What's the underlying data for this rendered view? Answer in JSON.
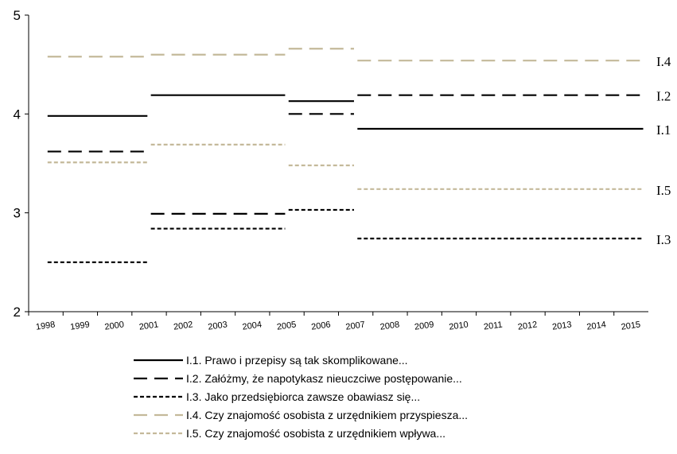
{
  "chart_data": {
    "type": "line",
    "title": "",
    "xlabel": "",
    "ylabel": "",
    "ylim": [
      2,
      5
    ],
    "yticks": [
      "2",
      "3",
      "4",
      "5"
    ],
    "xlim": [
      1998,
      2016
    ],
    "xticks": [
      "1998",
      "1999",
      "2000",
      "2001",
      "2002",
      "2003",
      "2004",
      "2005",
      "2006",
      "2007",
      "2008",
      "2009",
      "2010",
      "2011",
      "2012",
      "2013",
      "2014",
      "2015"
    ],
    "grid": false,
    "legend_position": "bottom",
    "series": [
      {
        "name": "I.1. Prawo i przepisy są tak skomplikowane...",
        "end_label": "I.1",
        "color": "#000000",
        "style": "solid",
        "segments": [
          {
            "x_start": 1998.5,
            "x_end": 2001.5,
            "y": 3.98
          },
          {
            "x_start": 2001.5,
            "x_end": 2005.5,
            "y": 4.19
          },
          {
            "x_start": 2005.5,
            "x_end": 2007.5,
            "y": 4.13
          },
          {
            "x_start": 2007.5,
            "x_end": 2015.9,
            "y": 3.85
          }
        ]
      },
      {
        "name": "I.2. Załóżmy, że napotykasz nieuczciwe postępowanie...",
        "end_label": "I.2",
        "color": "#000000",
        "style": "longdash",
        "segments": [
          {
            "x_start": 1998.5,
            "x_end": 2001.5,
            "y": 3.62
          },
          {
            "x_start": 2001.5,
            "x_end": 2005.5,
            "y": 2.99
          },
          {
            "x_start": 2005.5,
            "x_end": 2007.5,
            "y": 4.0
          },
          {
            "x_start": 2007.5,
            "x_end": 2015.9,
            "y": 4.19
          }
        ]
      },
      {
        "name": "I.3. Jako przedsiębiorca zawsze obawiasz się...",
        "end_label": "I.3",
        "color": "#000000",
        "style": "shortdash",
        "segments": [
          {
            "x_start": 1998.5,
            "x_end": 2001.5,
            "y": 2.5
          },
          {
            "x_start": 2001.5,
            "x_end": 2005.5,
            "y": 2.84
          },
          {
            "x_start": 2005.5,
            "x_end": 2007.5,
            "y": 3.03
          },
          {
            "x_start": 2007.5,
            "x_end": 2015.9,
            "y": 2.74
          }
        ]
      },
      {
        "name": "I.4. Czy znajomość osobista z urzędnikiem przyspiesza...",
        "end_label": "I.4",
        "color": "#c4b99a",
        "style": "longdash",
        "segments": [
          {
            "x_start": 1998.5,
            "x_end": 2001.5,
            "y": 4.58
          },
          {
            "x_start": 2001.5,
            "x_end": 2005.5,
            "y": 4.6
          },
          {
            "x_start": 2005.5,
            "x_end": 2007.5,
            "y": 4.66
          },
          {
            "x_start": 2007.5,
            "x_end": 2015.9,
            "y": 4.54
          }
        ]
      },
      {
        "name": "I.5. Czy znajomość osobista z urzędnikiem wpływa...",
        "end_label": "I.5",
        "color": "#c4b99a",
        "style": "shortdash",
        "segments": [
          {
            "x_start": 1998.5,
            "x_end": 2001.5,
            "y": 3.51
          },
          {
            "x_start": 2001.5,
            "x_end": 2005.5,
            "y": 3.69
          },
          {
            "x_start": 2005.5,
            "x_end": 2007.5,
            "y": 3.48
          },
          {
            "x_start": 2007.5,
            "x_end": 2015.9,
            "y": 3.24
          }
        ]
      }
    ]
  }
}
